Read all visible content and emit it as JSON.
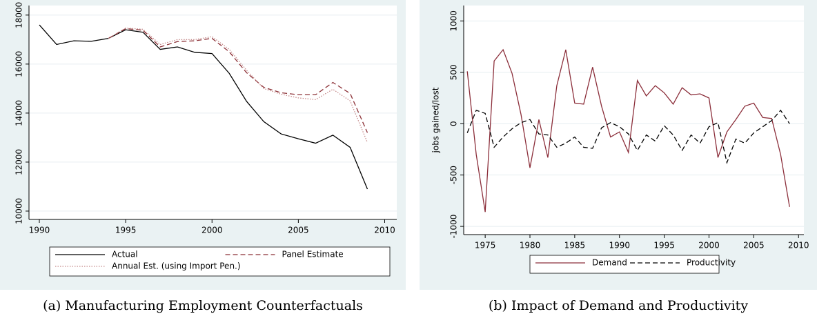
{
  "chart_data": [
    {
      "type": "line",
      "caption": "(a) Manufacturing Employment Counterfactuals",
      "x": [
        1990,
        1991,
        1992,
        1993,
        1994,
        1995,
        1996,
        1997,
        1998,
        1999,
        2000,
        2001,
        2002,
        2003,
        2004,
        2005,
        2006,
        2007,
        2008,
        2009
      ],
      "series": [
        {
          "name": "Actual",
          "color": "#000000",
          "style": "solid",
          "values": [
            17600,
            16800,
            16950,
            16930,
            17050,
            17400,
            17300,
            16600,
            16700,
            16480,
            16430,
            15620,
            14480,
            13650,
            13150,
            12950,
            12770,
            13100,
            12600,
            10900
          ]
        },
        {
          "name": "Panel Estimate",
          "color": "#8b2e34",
          "style": "dashed",
          "values": [
            null,
            null,
            null,
            null,
            17050,
            17450,
            17380,
            16700,
            16920,
            16950,
            17050,
            16500,
            15650,
            15050,
            14830,
            14750,
            14750,
            15250,
            14800,
            13200
          ]
        },
        {
          "name": "Annual Est. (using Import Pen.)",
          "color": "#c58a8a",
          "style": "dotted",
          "values": [
            null,
            null,
            null,
            null,
            17050,
            17470,
            17420,
            16800,
            17000,
            17000,
            17120,
            16600,
            15750,
            15000,
            14770,
            14620,
            14550,
            14970,
            14500,
            12800
          ]
        }
      ],
      "xlim": [
        1989.4,
        2010.7
      ],
      "xticks": [
        1990,
        1995,
        2000,
        2005,
        2010
      ],
      "ylim": [
        9660,
        18390
      ],
      "yticks": [
        10000,
        12000,
        14000,
        16000,
        18000
      ],
      "grid": true,
      "legend": "bottom"
    },
    {
      "type": "line",
      "caption": "(b) Impact of Demand and Productivity",
      "ylabel": "jobs gained/lost",
      "x": [
        1973,
        1974,
        1975,
        1976,
        1977,
        1978,
        1979,
        1980,
        1981,
        1982,
        1983,
        1984,
        1985,
        1986,
        1987,
        1988,
        1989,
        1990,
        1991,
        1992,
        1993,
        1994,
        1995,
        1996,
        1997,
        1998,
        1999,
        2000,
        2001,
        2002,
        2003,
        2004,
        2005,
        2006,
        2007,
        2008,
        2009
      ],
      "series": [
        {
          "name": "Demand",
          "color": "#8b2e3a",
          "style": "solid",
          "values": [
            510,
            -300,
            -860,
            610,
            720,
            490,
            90,
            -430,
            40,
            -330,
            370,
            720,
            200,
            190,
            550,
            170,
            -130,
            -80,
            -280,
            420,
            270,
            370,
            300,
            190,
            350,
            280,
            290,
            250,
            -330,
            -80,
            40,
            170,
            200,
            60,
            50,
            -300,
            -810
          ]
        },
        {
          "name": "Productivity",
          "color": "#000000",
          "style": "dashed",
          "values": [
            -90,
            130,
            100,
            -230,
            -130,
            -50,
            10,
            40,
            -100,
            -110,
            -230,
            -190,
            -130,
            -230,
            -240,
            -40,
            10,
            -30,
            -100,
            -260,
            -110,
            -170,
            -20,
            -110,
            -260,
            -110,
            -190,
            -30,
            10,
            -380,
            -150,
            -190,
            -90,
            -30,
            30,
            130,
            0
          ]
        }
      ],
      "xlim": [
        1972.6,
        2010.6
      ],
      "xticks": [
        1975,
        1980,
        1985,
        1990,
        1995,
        2000,
        2005,
        2010
      ],
      "ylim": [
        -1080,
        1150
      ],
      "yticks": [
        -1000,
        -500,
        0,
        500,
        1000
      ],
      "grid": true,
      "legend": "bottom"
    }
  ]
}
